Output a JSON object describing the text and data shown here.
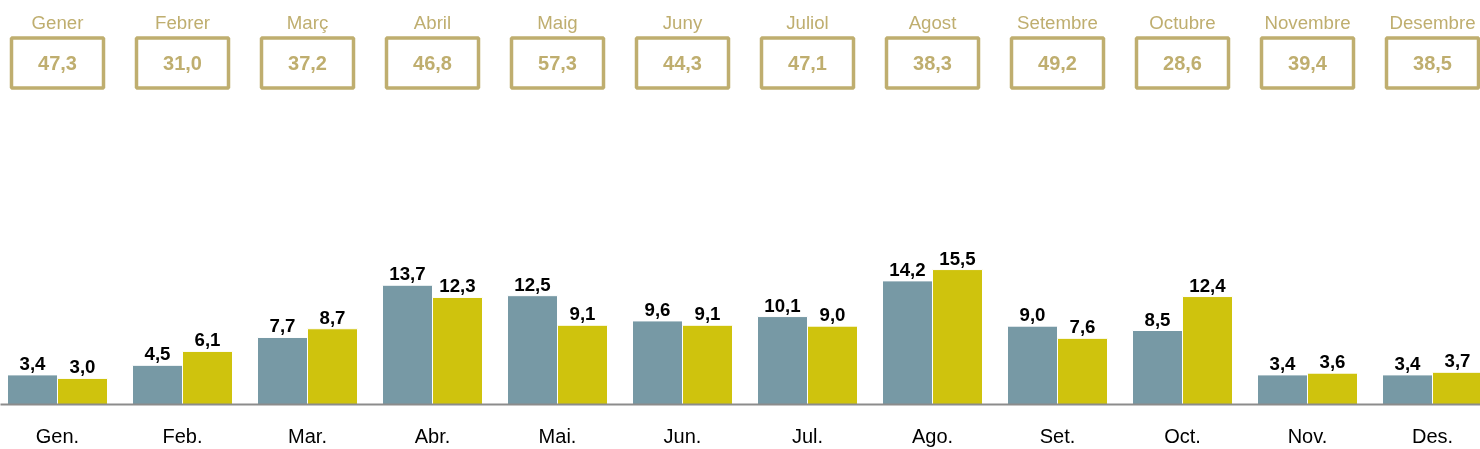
{
  "chart_data": [
    {
      "type": "other",
      "categories": [
        "Gener",
        "Febrer",
        "Març",
        "Abril",
        "Maig",
        "Juny",
        "Juliol",
        "Agost",
        "Setembre",
        "Octubre",
        "Novembre",
        "Desembre"
      ],
      "value_labels": [
        "47,3",
        "31,0",
        "37,2",
        "46,8",
        "57,3",
        "44,3",
        "47,1",
        "38,3",
        "49,2",
        "28,6",
        "39,4",
        "38,5"
      ],
      "color": "#bfae6f"
    },
    {
      "type": "bar",
      "categories": [
        "Gen.",
        "Feb.",
        "Mar.",
        "Abr.",
        "Mai.",
        "Jun.",
        "Jul.",
        "Ago.",
        "Set.",
        "Oct.",
        "Nov.",
        "Des."
      ],
      "series": [
        {
          "color": "#7799a5",
          "values": [
            3.4,
            4.5,
            7.7,
            13.7,
            12.5,
            9.6,
            10.1,
            14.2,
            9.0,
            8.5,
            3.4,
            3.4
          ],
          "value_labels": [
            "3,4",
            "4,5",
            "7,7",
            "13,7",
            "12,5",
            "9,6",
            "10,1",
            "14,2",
            "9,0",
            "8,5",
            "3,4",
            "3,4"
          ]
        },
        {
          "color": "#cfc30d",
          "values": [
            3.0,
            6.1,
            8.7,
            12.3,
            9.1,
            9.1,
            9.0,
            15.5,
            7.6,
            12.4,
            3.6,
            3.7
          ],
          "value_labels": [
            "3,0",
            "6,1",
            "8,7",
            "12,3",
            "9,1",
            "9,1",
            "9,0",
            "15,5",
            "7,6",
            "12,4",
            "3,6",
            "3,7"
          ]
        }
      ],
      "grid": false
    }
  ]
}
